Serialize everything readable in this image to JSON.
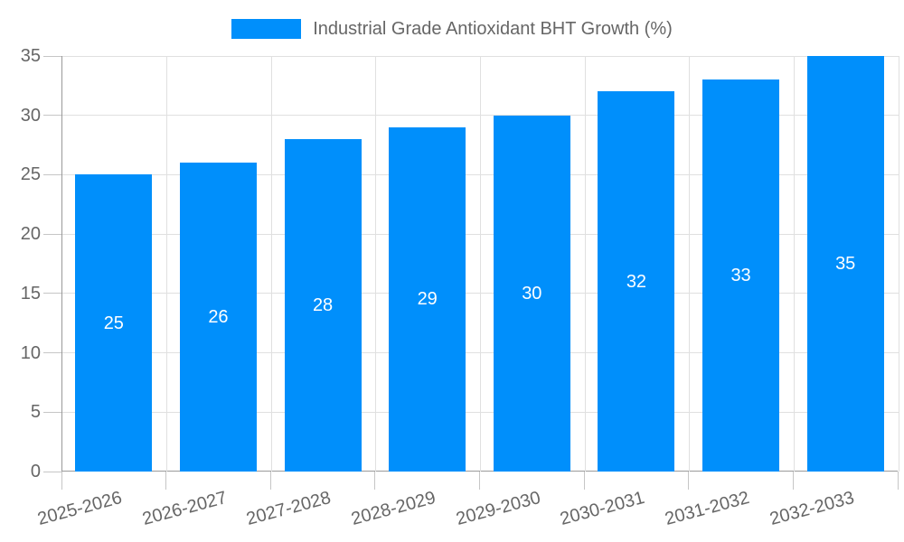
{
  "chart_data": {
    "type": "bar",
    "title": "Industrial Grade Antioxidant BHT Growth (%)",
    "categories": [
      "2025-2026",
      "2026-2027",
      "2027-2028",
      "2028-2029",
      "2029-2030",
      "2030-2031",
      "2031-2032",
      "2032-2033"
    ],
    "values": [
      25,
      26,
      28,
      29,
      30,
      32,
      33,
      35
    ],
    "xlabel": "",
    "ylabel": "",
    "ylim": [
      0,
      35
    ],
    "yticks": [
      0,
      5,
      10,
      15,
      20,
      25,
      30,
      35
    ],
    "grid": true,
    "legend_position": "top-center",
    "x_label_rotation_deg": -15,
    "bar_color": "#008ffb",
    "bar_label_color": "#ffffff",
    "axis_text_color": "#666666",
    "gridline_color": "#e0e0e0",
    "tick_color": "#c6c6c6",
    "axis_line_color": "#9a9a9a",
    "background_color": "#ffffff"
  }
}
